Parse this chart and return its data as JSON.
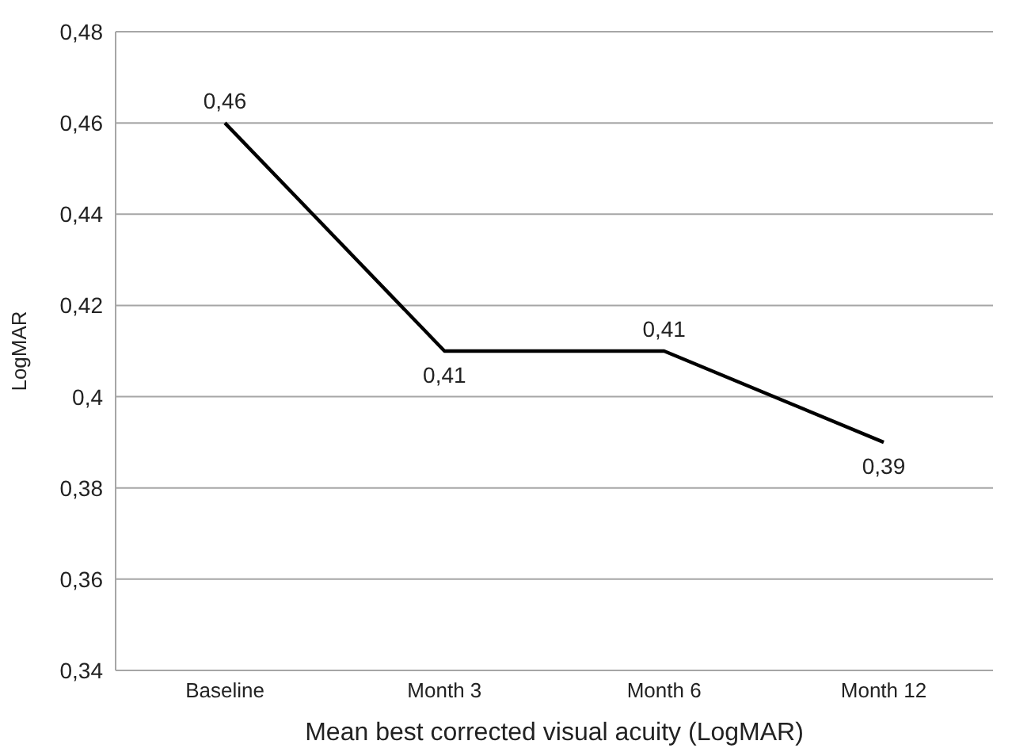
{
  "chart_data": {
    "type": "line",
    "xlabel": "Mean best corrected visual acuity (LogMAR)",
    "ylabel": "LogMAR",
    "categories": [
      "Baseline",
      "Month 3",
      "Month 6",
      "Month 12"
    ],
    "series": [
      {
        "color": "#000000",
        "values": [
          0.46,
          0.41,
          0.41,
          0.39
        ],
        "value_labels": [
          "0,46",
          "0,41",
          "0,41",
          "0,39"
        ]
      }
    ],
    "ylim": [
      0.34,
      0.48
    ],
    "yticks": [
      {
        "value": 0.34,
        "label": "0,34"
      },
      {
        "value": 0.36,
        "label": "0,36"
      },
      {
        "value": 0.38,
        "label": "0,38"
      },
      {
        "value": 0.4,
        "label": "0,4"
      },
      {
        "value": 0.42,
        "label": "0,42"
      },
      {
        "value": 0.44,
        "label": "0,44"
      },
      {
        "value": 0.46,
        "label": "0,46"
      },
      {
        "value": 0.48,
        "label": "0,48"
      }
    ],
    "grid": "y",
    "marker": "none",
    "line_style": "solid"
  }
}
